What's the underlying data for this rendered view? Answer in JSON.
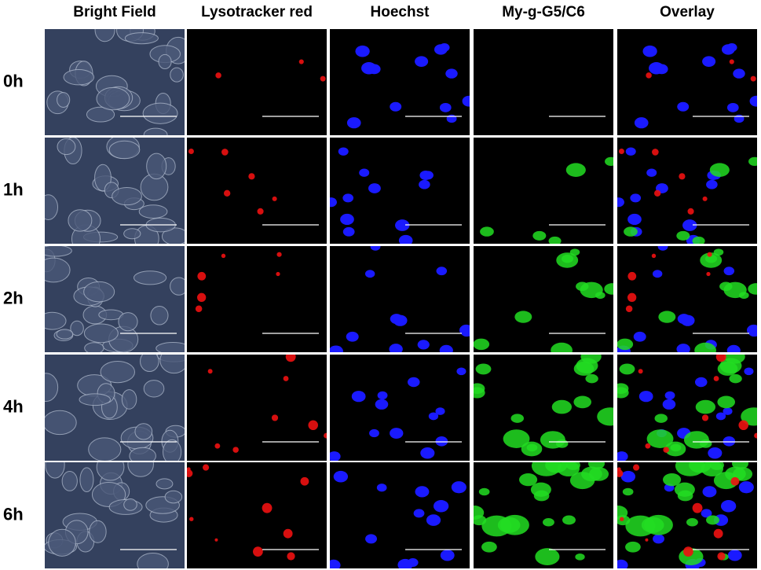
{
  "columns": [
    "Bright Field",
    "Lysotracker red",
    "Hoechst",
    "My-g-G5/C6",
    "Overlay"
  ],
  "rows": [
    "0h",
    "1h",
    "2h",
    "4h",
    "6h"
  ]
}
